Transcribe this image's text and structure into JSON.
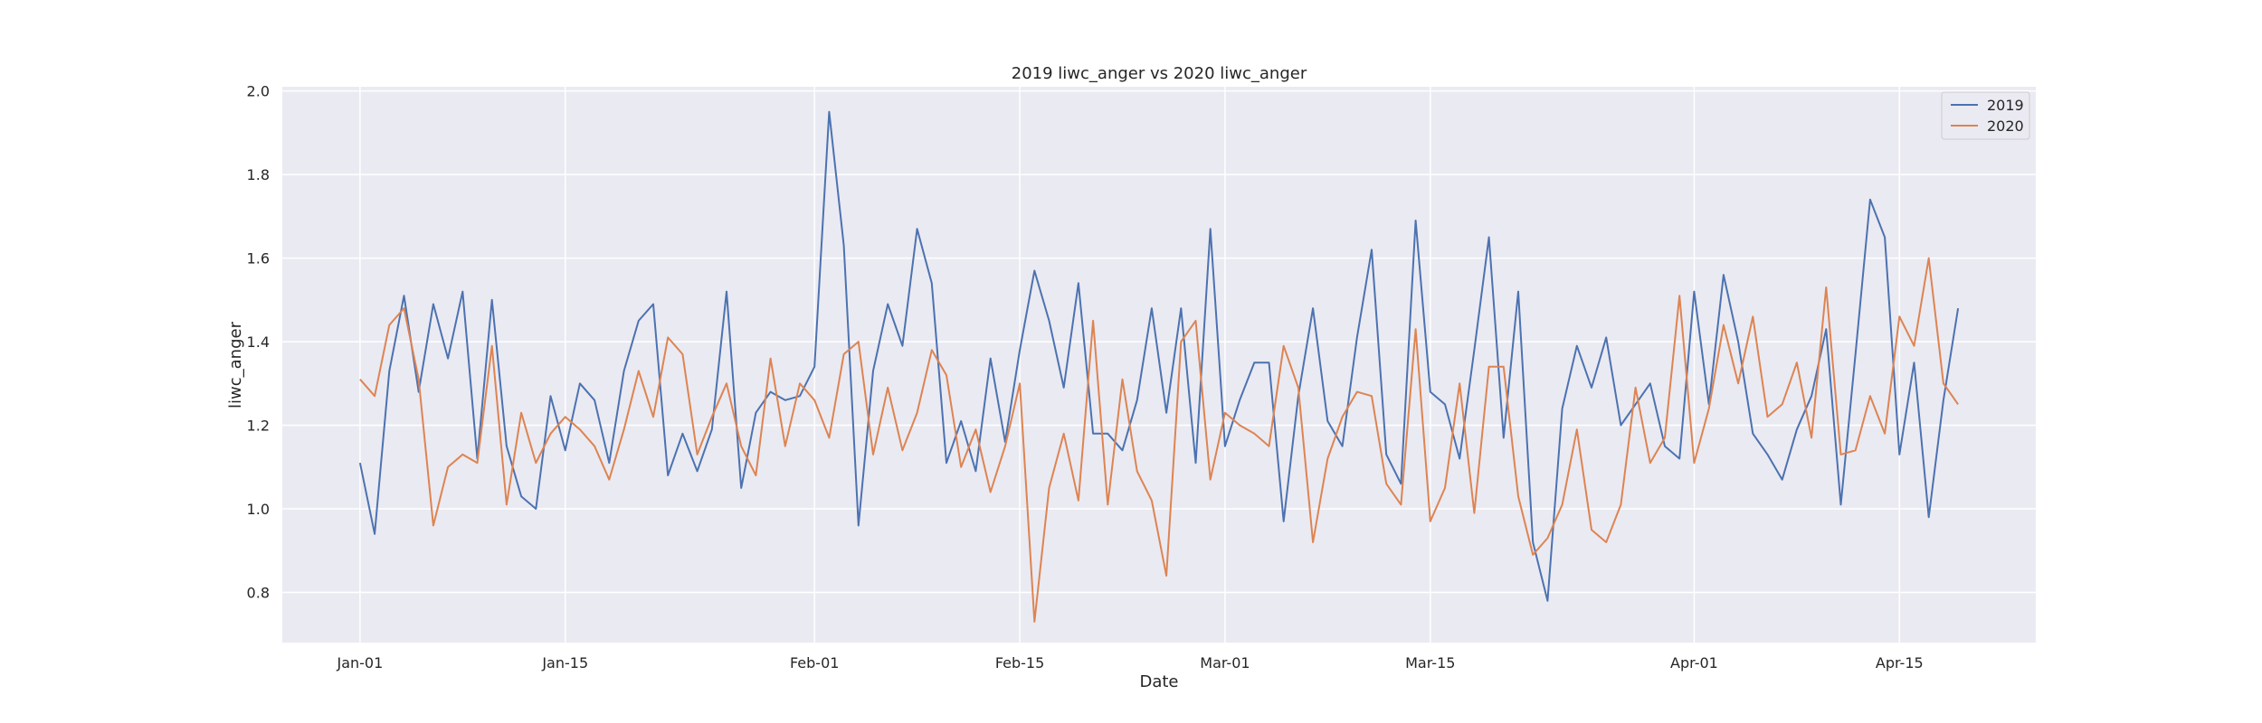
{
  "chart_data": {
    "type": "line",
    "title": "2019 liwc_anger vs 2020 liwc_anger",
    "xlabel": "Date",
    "ylabel": "liwc_anger",
    "x_tick_labels": [
      "Jan-01",
      "Jan-15",
      "Feb-01",
      "Feb-15",
      "Mar-01",
      "Mar-15",
      "Apr-01",
      "Apr-15"
    ],
    "x_tick_days": [
      0,
      14,
      31,
      45,
      59,
      73,
      91,
      105
    ],
    "y_ticks": [
      0.8,
      1.0,
      1.2,
      1.4,
      1.6,
      1.8,
      2.0
    ],
    "y_tick_labels": [
      "0.8",
      "1.0",
      "1.2",
      "1.4",
      "1.6",
      "1.8",
      "2.0"
    ],
    "xlim": [
      -5.3,
      114.3
    ],
    "ylim": [
      0.68,
      2.01
    ],
    "grid": true,
    "legend_position": "top-right",
    "background": "#eaeaf2",
    "series": [
      {
        "name": "2019",
        "color": "#4c72b0",
        "values": [
          1.11,
          0.94,
          1.33,
          1.51,
          1.28,
          1.49,
          1.36,
          1.52,
          1.12,
          1.5,
          1.15,
          1.03,
          1.0,
          1.27,
          1.14,
          1.3,
          1.26,
          1.11,
          1.33,
          1.45,
          1.49,
          1.08,
          1.18,
          1.09,
          1.19,
          1.52,
          1.05,
          1.23,
          1.28,
          1.26,
          1.27,
          1.34,
          1.95,
          1.63,
          0.96,
          1.33,
          1.49,
          1.39,
          1.67,
          1.54,
          1.11,
          1.21,
          1.09,
          1.36,
          1.16,
          1.38,
          1.57,
          1.45,
          1.29,
          1.54,
          1.18,
          1.18,
          1.14,
          1.26,
          1.48,
          1.23,
          1.48,
          1.11,
          1.67,
          1.15,
          1.26,
          1.35,
          1.35,
          0.97,
          1.27,
          1.48,
          1.21,
          1.15,
          1.41,
          1.62,
          1.13,
          1.06,
          1.69,
          1.28,
          1.25,
          1.12,
          1.38,
          1.65,
          1.17,
          1.52,
          0.92,
          0.78,
          1.24,
          1.39,
          1.29,
          1.41,
          1.2,
          1.25,
          1.3,
          1.15,
          1.12,
          1.52,
          1.25,
          1.56,
          1.4,
          1.18,
          1.13,
          1.07,
          1.19,
          1.27,
          1.43,
          1.01,
          1.37,
          1.74,
          1.65,
          1.13,
          1.35,
          0.98,
          1.26,
          1.48
        ]
      },
      {
        "name": "2020",
        "color": "#dd8452",
        "values": [
          1.31,
          1.27,
          1.44,
          1.48,
          1.31,
          0.96,
          1.1,
          1.13,
          1.11,
          1.39,
          1.01,
          1.23,
          1.11,
          1.18,
          1.22,
          1.19,
          1.15,
          1.07,
          1.19,
          1.33,
          1.22,
          1.41,
          1.37,
          1.13,
          1.22,
          1.3,
          1.15,
          1.08,
          1.36,
          1.15,
          1.3,
          1.26,
          1.17,
          1.37,
          1.4,
          1.13,
          1.29,
          1.14,
          1.23,
          1.38,
          1.32,
          1.1,
          1.19,
          1.04,
          1.15,
          1.3,
          0.73,
          1.05,
          1.18,
          1.02,
          1.45,
          1.01,
          1.31,
          1.09,
          1.02,
          0.84,
          1.4,
          1.45,
          1.07,
          1.23,
          1.2,
          1.18,
          1.15,
          1.39,
          1.29,
          0.92,
          1.12,
          1.22,
          1.28,
          1.27,
          1.06,
          1.01,
          1.43,
          0.97,
          1.05,
          1.3,
          0.99,
          1.34,
          1.34,
          1.03,
          0.89,
          0.93,
          1.01,
          1.19,
          0.95,
          0.92,
          1.01,
          1.29,
          1.11,
          1.17,
          1.51,
          1.11,
          1.24,
          1.44,
          1.3,
          1.46,
          1.22,
          1.25,
          1.35,
          1.17,
          1.53,
          1.13,
          1.14,
          1.27,
          1.18,
          1.46,
          1.39,
          1.6,
          1.3,
          1.25
        ]
      }
    ]
  }
}
